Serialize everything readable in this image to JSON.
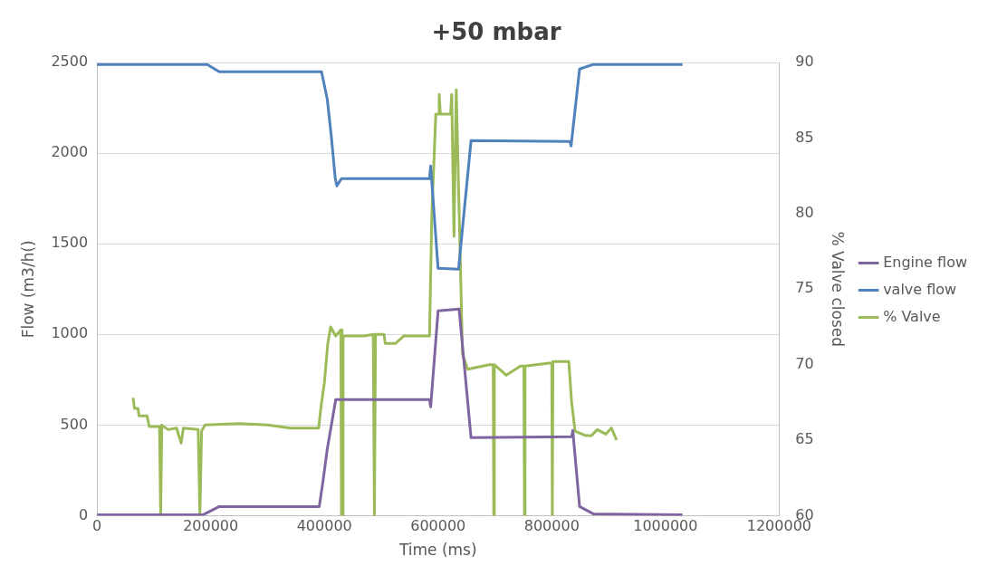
{
  "chart_data": {
    "type": "line",
    "title": "+50 mbar",
    "xlabel": "Time (ms)",
    "ylabel": "Flow (m3/h()",
    "y2label": "% Valve closed",
    "xlim": [
      0,
      1200000
    ],
    "xticks": [
      0,
      200000,
      400000,
      600000,
      800000,
      1000000,
      1200000
    ],
    "ylim": [
      0,
      2500
    ],
    "yticks": [
      0,
      500,
      1000,
      1500,
      2000,
      2500
    ],
    "y2lim": [
      60,
      90
    ],
    "y2ticks": [
      60,
      65,
      70,
      75,
      80,
      85,
      90
    ],
    "grid": "y",
    "legend": "right",
    "marker": "none",
    "line_style": "solid",
    "series": [
      {
        "name": "Engine flow",
        "color": "#8064a2",
        "x": [
          0,
          187000,
          215000,
          391000,
          398000,
          405000,
          420000,
          585000,
          587000,
          600000,
          637000,
          658000,
          835000,
          837000,
          849000,
          873000,
          1030000
        ],
        "values": [
          5,
          5,
          50,
          50,
          200,
          365,
          640,
          640,
          600,
          1130,
          1140,
          430,
          435,
          470,
          50,
          10,
          5
        ]
      },
      {
        "name": "valve flow",
        "color": "#4f81bd",
        "x": [
          0,
          194000,
          215000,
          395000,
          405000,
          412000,
          419000,
          422000,
          430000,
          585000,
          587000,
          600000,
          636000,
          658000,
          832000,
          834000,
          849000,
          873000,
          1030000
        ],
        "values": [
          2490,
          2490,
          2450,
          2450,
          2300,
          2100,
          1865,
          1820,
          1860,
          1860,
          1930,
          1365,
          1360,
          2070,
          2065,
          2040,
          2465,
          2490,
          2490
        ]
      },
      {
        "name": "% Valve",
        "color": "#9bbb59",
        "axis": "y2",
        "x": [
          63500,
          66000,
          72000,
          74000,
          88000,
          92000,
          110000,
          112000,
          114000,
          125000,
          140000,
          148000,
          152000,
          178000,
          181000,
          184000,
          190000,
          250000,
          300000,
          340000,
          390000,
          394000,
          400000,
          406000,
          411000,
          420000,
          429000,
          430000,
          431000,
          432000,
          433000,
          470000,
          486000,
          488000,
          490000,
          505000,
          507000,
          525000,
          540000,
          585000,
          589000,
          596000,
          601000,
          602000,
          604000,
          622000,
          624000,
          628000,
          632000,
          643000,
          652000,
          690000,
          697000,
          698000,
          699000,
          720000,
          745000,
          751000,
          752000,
          753000,
          795000,
          800000,
          801000,
          802000,
          830000,
          835000,
          841000,
          860000,
          870000,
          880000,
          895000,
          905000,
          914000
        ],
        "values": [
          67.8,
          67.1,
          67.1,
          66.6,
          66.6,
          65.9,
          65.9,
          60,
          66.0,
          65.7,
          65.8,
          64.8,
          65.8,
          65.7,
          60,
          65.6,
          66.0,
          66.1,
          66.0,
          65.8,
          65.8,
          67.2,
          68.8,
          71.4,
          72.5,
          71.9,
          72.3,
          60,
          72.3,
          60,
          71.9,
          71.9,
          72.0,
          60,
          72.0,
          72.0,
          71.4,
          71.4,
          71.9,
          71.9,
          79.9,
          86.6,
          86.6,
          87.9,
          86.6,
          86.6,
          87.9,
          78.5,
          88.2,
          70.7,
          69.7,
          70.0,
          70.0,
          60,
          70.0,
          69.3,
          69.9,
          69.9,
          60,
          69.9,
          70.1,
          70.1,
          60,
          70.2,
          70.2,
          67.5,
          65.6,
          65.3,
          65.3,
          65.7,
          65.4,
          65.8,
          65.0
        ]
      }
    ]
  }
}
